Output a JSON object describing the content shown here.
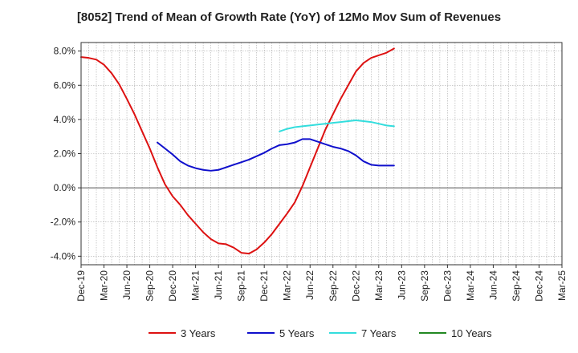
{
  "chart_data": {
    "type": "line",
    "title": "[8052]  Trend of Mean of Growth Rate (YoY) of 12Mo Mov Sum of Revenues",
    "xlabel": "",
    "ylabel": "",
    "ylim": [
      -4.5,
      8.5
    ],
    "yticks": [
      8.0,
      6.0,
      4.0,
      2.0,
      0.0,
      -2.0,
      -4.0
    ],
    "ytick_labels": [
      "8.0%",
      "6.0%",
      "4.0%",
      "2.0%",
      "0.0%",
      "-2.0%",
      "-4.0%"
    ],
    "xtick_labels": [
      "Dec-19",
      "Mar-20",
      "Jun-20",
      "Sep-20",
      "Dec-20",
      "Mar-21",
      "Jun-21",
      "Sep-21",
      "Dec-21",
      "Mar-22",
      "Jun-22",
      "Sep-22",
      "Dec-22",
      "Mar-23",
      "Jun-23",
      "Sep-23",
      "Dec-23",
      "Mar-24",
      "Jun-24",
      "Sep-24",
      "Dec-24",
      "Mar-25"
    ],
    "grid": true,
    "legend_position": "bottom",
    "series": [
      {
        "name": "3 Years",
        "color": "#dd1111",
        "start_index": 0,
        "values": [
          7.65,
          7.6,
          7.5,
          7.2,
          6.7,
          6.05,
          5.2,
          4.3,
          3.3,
          2.3,
          1.2,
          0.2,
          -0.5,
          -1.0,
          -1.6,
          -2.1,
          -2.6,
          -3.0,
          -3.25,
          -3.3,
          -3.5,
          -3.8,
          -3.85,
          -3.6,
          -3.2,
          -2.7,
          -2.1,
          -1.5,
          -0.85,
          0.1,
          1.2,
          2.3,
          3.4,
          4.3,
          5.2,
          6.0,
          6.8,
          7.3,
          7.6,
          7.75,
          7.9,
          8.15
        ]
      },
      {
        "name": "5 Years",
        "color": "#0f0fcc",
        "start_index": 10,
        "values": [
          2.65,
          2.3,
          1.95,
          1.55,
          1.3,
          1.15,
          1.05,
          1.0,
          1.05,
          1.2,
          1.35,
          1.5,
          1.65,
          1.85,
          2.05,
          2.3,
          2.5,
          2.55,
          2.65,
          2.85,
          2.85,
          2.7,
          2.55,
          2.4,
          2.3,
          2.15,
          1.9,
          1.55,
          1.35,
          1.3,
          1.3,
          1.3
        ]
      },
      {
        "name": "7 Years",
        "color": "#33dddd",
        "start_index": 26,
        "values": [
          3.3,
          3.45,
          3.55,
          3.6,
          3.65,
          3.7,
          3.75,
          3.8,
          3.85,
          3.9,
          3.95,
          3.9,
          3.85,
          3.75,
          3.65,
          3.6
        ]
      },
      {
        "name": "10 Years",
        "color": "#228822",
        "start_index": 0,
        "values": []
      }
    ]
  }
}
